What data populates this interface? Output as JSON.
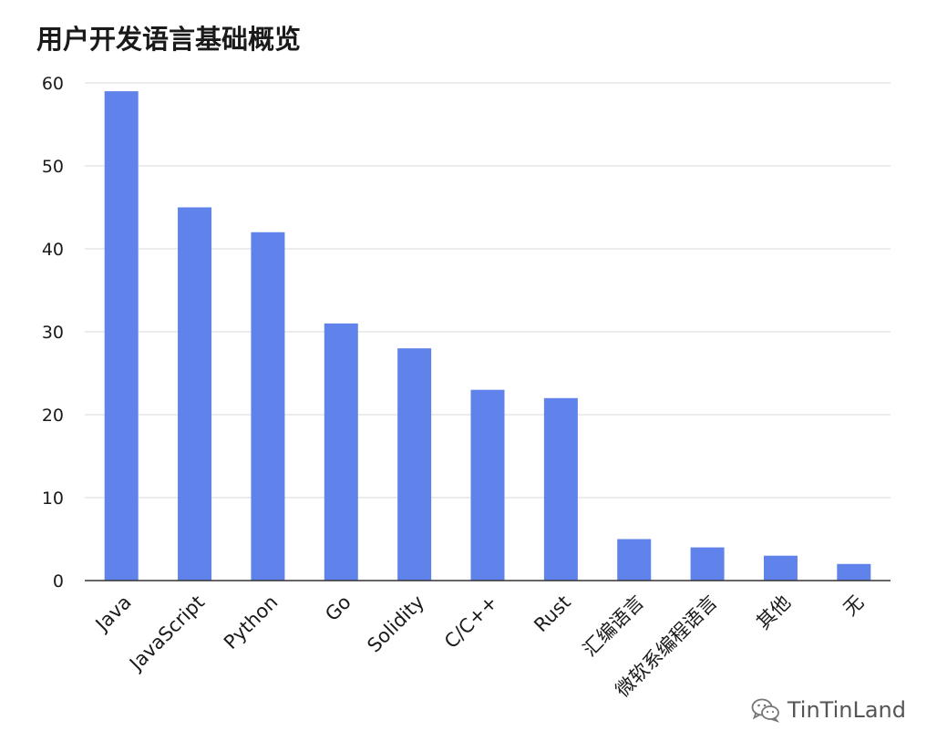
{
  "chart_data": {
    "type": "bar",
    "title": "用户开发语言基础概览",
    "categories": [
      "Java",
      "JavaScript",
      "Python",
      "Go",
      "Solidity",
      "C/C++",
      "Rust",
      "汇编语言",
      "微软系编程语言",
      "其他",
      "无"
    ],
    "values": [
      59,
      45,
      42,
      31,
      28,
      23,
      22,
      5,
      4,
      3,
      2
    ],
    "ylim": [
      0,
      60
    ],
    "yticks": [
      0,
      10,
      20,
      30,
      40,
      50,
      60
    ],
    "grid": true,
    "bar_color": "#5f83ea"
  },
  "watermark": {
    "text": "TinTinLand",
    "icon": "wechat-icon"
  }
}
